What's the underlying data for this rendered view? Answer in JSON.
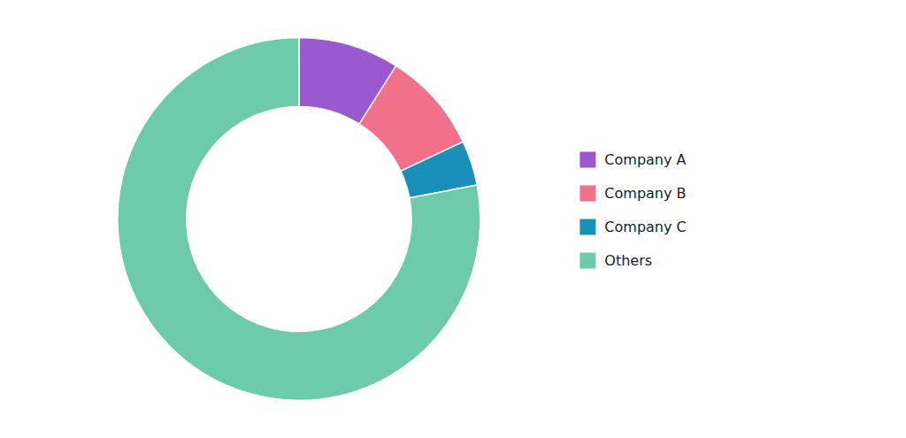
{
  "chart_data": {
    "type": "donut",
    "categories": [
      "Company A",
      "Company B",
      "Company C",
      "Others"
    ],
    "values": [
      9,
      9,
      4,
      78
    ],
    "colors": [
      "#9B59D0",
      "#F1718A",
      "#1A90B8",
      "#6DCBAB"
    ],
    "legend": "right"
  }
}
